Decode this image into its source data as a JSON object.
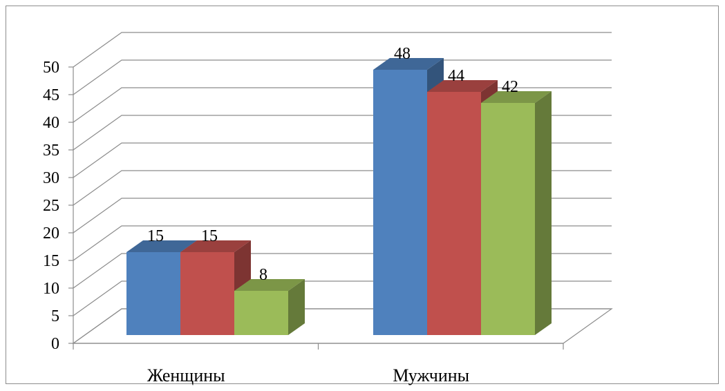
{
  "chart_data": {
    "type": "bar",
    "style": "3d-clustered-column",
    "categories": [
      "Женщины",
      "Мужчины"
    ],
    "series": [
      {
        "values": [
          15,
          48
        ],
        "color": "#4f81bd"
      },
      {
        "values": [
          15,
          44
        ],
        "color": "#c0504d"
      },
      {
        "values": [
          8,
          42
        ],
        "color": "#9bbb59"
      }
    ],
    "ylim": [
      0,
      50
    ],
    "ytick_step": 5,
    "yticks": [
      "0",
      "5",
      "10",
      "15",
      "20",
      "25",
      "30",
      "35",
      "40",
      "45",
      "50"
    ],
    "grid": true,
    "legend": "none",
    "title": "",
    "xlabel": "",
    "ylabel": ""
  }
}
